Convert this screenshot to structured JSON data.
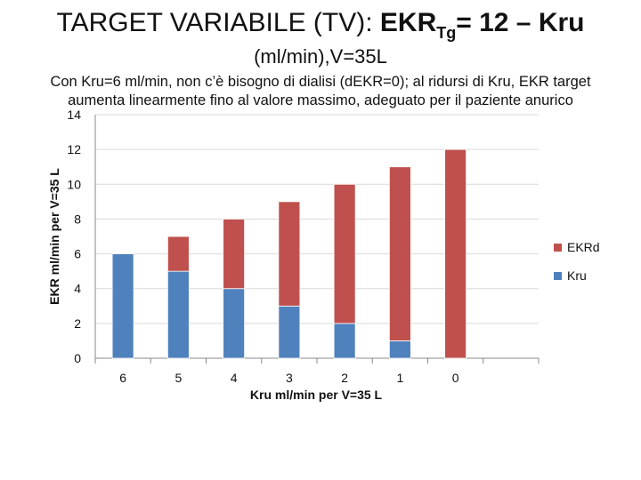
{
  "slide": {
    "title_main": "TARGET VARIABILE (TV): ",
    "title_bold_pre": "EKR",
    "title_bold_sub": "Tg",
    "title_bold_post": "= 12 – Kru",
    "title_line2": "(ml/min),V=35L",
    "description_line1": "Con Kru=6 ml/min, non c’è bisogno di dialisi (dEKR=0); al ridursi di Kru, EKR target",
    "description_line2": "aumenta linearmente fino al valore massimo, adeguato per il paziente anurico"
  },
  "colors": {
    "kru": "#4F81BD",
    "ekrd": "#C0504D",
    "axis": "#888888",
    "grid": "#D9D9D9"
  },
  "chart_data": {
    "type": "bar",
    "stacked": true,
    "categories": [
      "6",
      "5",
      "4",
      "3",
      "2",
      "1",
      "0"
    ],
    "series": [
      {
        "name": "Kru",
        "values": [
          6,
          5,
          4,
          3,
          2,
          1,
          0
        ]
      },
      {
        "name": "EKRd",
        "values": [
          0,
          2,
          4,
          6,
          8,
          10,
          12
        ]
      }
    ],
    "xlabel": "Kru ml/min per V=35 L",
    "ylabel": "EKR ml/min per V=35 L",
    "ylim": [
      0,
      14
    ],
    "yticks": [
      0,
      2,
      4,
      6,
      8,
      10,
      12,
      14
    ],
    "grid": true,
    "legend_position": "right",
    "legend_order": [
      "EKRd",
      "Kru"
    ]
  }
}
